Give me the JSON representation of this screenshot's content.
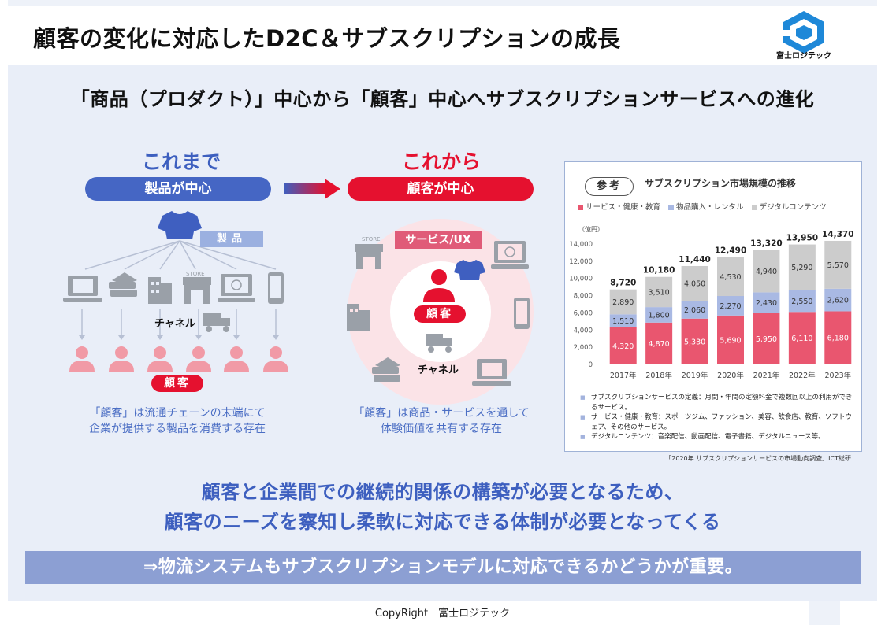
{
  "header": {
    "title": "顧客の変化に対応したD2C＆サブスクリプションの成長",
    "logo_text": "富士ロジテック"
  },
  "subtitle": "「商品（プロダクト）」中心から「顧客」中心へサブスクリプションサービスへの進化",
  "before": {
    "heading": "これまで",
    "pill": "製品が中心",
    "product_tag": "製品",
    "channel_label": "チャネル",
    "customer_badge": "顧客",
    "store_label": "STORE",
    "desc_line1": "「顧客」は流通チェーンの末端にて",
    "desc_line2": "企業が提供する製品を消費する存在"
  },
  "after": {
    "heading": "これから",
    "pill": "顧客が中心",
    "service_tag": "サービス/UX",
    "customer_badge": "顧客",
    "channel_label": "チャネル",
    "store_label": "STORE",
    "desc_line1": "「顧客」は商品・サービスを通して",
    "desc_line2": "体験価値を共有する存在"
  },
  "chart_panel": {
    "ref_label": "参考",
    "title": "サブスクリプション市場規模の推移",
    "notes": [
      "サブスクリプションサービスの定義：月間・年間の定額料金で複数回以上の利用ができるサービス。",
      "サービス・健康・教育：スポーツジム、ファッション、美容、飲食店、教育、ソフトウェア、その他のサービス。",
      "デジタルコンテンツ：音楽配信、動画配信、電子書籍、デジタルニュース等。"
    ],
    "source": "「2020年 サブスクリプションサービスの市場動向調査」ICT総研"
  },
  "chart_data": {
    "type": "bar",
    "stacked": true,
    "title": "サブスクリプション市場規模の推移",
    "ylabel": "（億円）",
    "ylim": [
      0,
      14000
    ],
    "yticks": [
      "0",
      "2,000",
      "4,000",
      "6,000",
      "8,000",
      "10,000",
      "12,000",
      "14,000"
    ],
    "ytick_values": [
      0,
      2000,
      4000,
      6000,
      8000,
      10000,
      12000,
      14000
    ],
    "categories": [
      "2017年",
      "2018年",
      "2019年",
      "2020年",
      "2021年",
      "2022年",
      "2023年"
    ],
    "series": [
      {
        "name": "サービス・健康・教育",
        "color": "#e9566f",
        "values": [
          4320,
          4870,
          5330,
          5690,
          5950,
          6110,
          6180
        ],
        "labels": [
          "4,320",
          "4,870",
          "5,330",
          "5,690",
          "5,950",
          "6,110",
          "6,180"
        ]
      },
      {
        "name": "物品購入・レンタル",
        "color": "#a9b9e3",
        "values": [
          1510,
          1800,
          2060,
          2270,
          2430,
          2550,
          2620
        ],
        "labels": [
          "1,510",
          "1,800",
          "2,060",
          "2,270",
          "2,430",
          "2,550",
          "2,620"
        ]
      },
      {
        "name": "デジタルコンテンツ",
        "color": "#cccccc",
        "values": [
          2890,
          3510,
          4050,
          4530,
          4940,
          5290,
          5570
        ],
        "labels": [
          "2,890",
          "3,510",
          "4,050",
          "4,530",
          "4,940",
          "5,290",
          "5,570"
        ]
      }
    ],
    "totals": [
      8720,
      10180,
      11440,
      12490,
      13320,
      13950,
      14370
    ],
    "total_labels": [
      "8,720",
      "10,180",
      "11,440",
      "12,490",
      "13,320",
      "13,950",
      "14,370"
    ],
    "legend_position": "top",
    "grid": false
  },
  "message": {
    "line1": "顧客と企業間での継続的関係の構築が必要となるため、",
    "line2": "顧客のニーズを察知し柔軟に対応できる体制が必要となってくる"
  },
  "conclusion": "⇒物流システムもサブスクリプションモデルに対応できるかどうかが重要。",
  "footer": {
    "copyright": "CopyRight　富士ロジテック"
  },
  "colors": {
    "blue": "#4566c4",
    "red": "#e5112f",
    "panel_bg": "#e9eef8",
    "icon_gray": "#9aa0a8",
    "person_pink": "#f19aa6"
  },
  "icons": [
    "tshirt-icon",
    "laptop-icon",
    "books-icon",
    "building-icon",
    "store-icon",
    "monitor-icon",
    "smartphone-icon",
    "truck-icon",
    "person-icon"
  ]
}
